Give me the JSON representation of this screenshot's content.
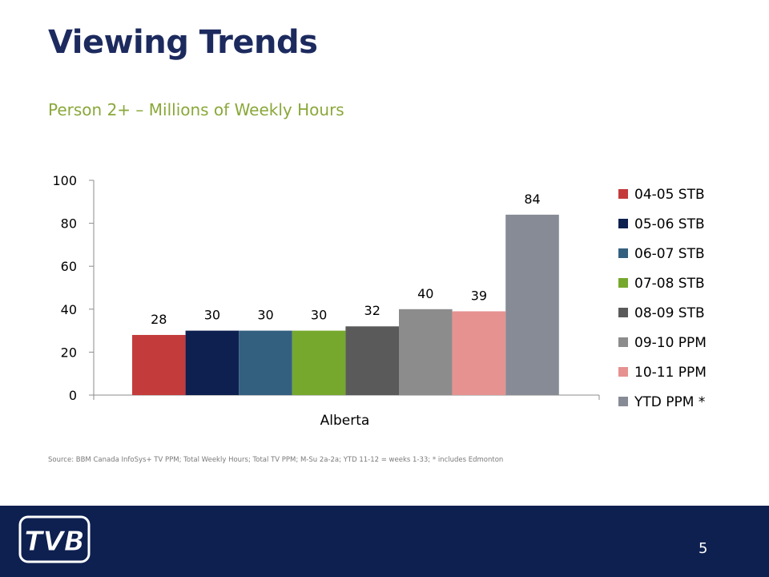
{
  "slide": {
    "title": "Viewing Trends",
    "subtitle": "Person 2+ – Millions of Weekly Hours",
    "source": "Source: BBM Canada InfoSys+ TV PPM; Total Weekly Hours; Total TV PPM; M-Su 2a-2a; YTD 11-12 = weeks 1-33; * includes Edmonton",
    "page_number": "5",
    "logo_text": "TVB",
    "footer_color": "#0e2050",
    "title_color": "#1c2a5e",
    "subtitle_color": "#8aa83a"
  },
  "chart_data": {
    "type": "bar",
    "title": "",
    "xlabel": "",
    "ylabel": "",
    "categories": [
      "Alberta"
    ],
    "ylim": [
      0,
      100
    ],
    "yticks": [
      0,
      20,
      40,
      60,
      80,
      100
    ],
    "grid": false,
    "legend_position": "right",
    "series": [
      {
        "name": "04-05 STB",
        "values": [
          28
        ],
        "color": "#c33b3b"
      },
      {
        "name": "05-06 STB",
        "values": [
          30
        ],
        "color": "#0e2050"
      },
      {
        "name": "06-07 STB",
        "values": [
          30
        ],
        "color": "#34607f"
      },
      {
        "name": "07-08 STB",
        "values": [
          30
        ],
        "color": "#76a82e"
      },
      {
        "name": "08-09 STB",
        "values": [
          32
        ],
        "color": "#5a5a5a"
      },
      {
        "name": "09-10 PPM",
        "values": [
          40
        ],
        "color": "#8c8c8c"
      },
      {
        "name": "10-11 PPM",
        "values": [
          39
        ],
        "color": "#e69290"
      },
      {
        "name": "YTD PPM *",
        "values": [
          84
        ],
        "color": "#878b96"
      }
    ]
  }
}
